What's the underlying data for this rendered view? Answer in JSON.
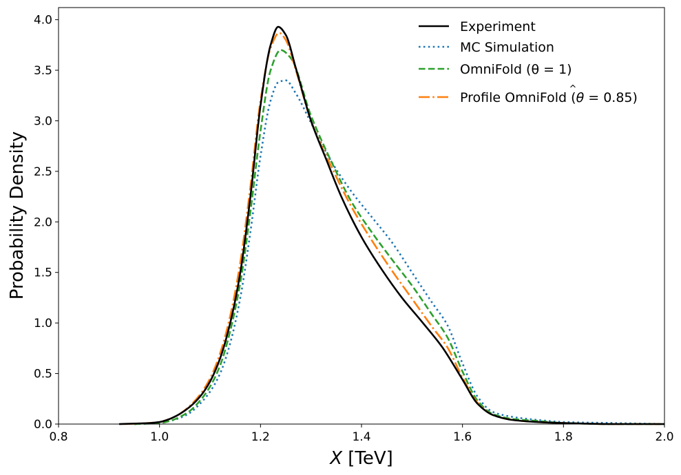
{
  "chart_data": {
    "type": "line",
    "title": "",
    "xlabel_var": "X",
    "xlabel_unit": "[TeV]",
    "ylabel": "Probability Density",
    "xlim": [
      0.8,
      2.0
    ],
    "ylim": [
      0.0,
      4.12
    ],
    "xticks": [
      0.8,
      1.0,
      1.2,
      1.4,
      1.6,
      1.8,
      2.0
    ],
    "xtick_labels": [
      "0.8",
      "1.0",
      "1.2",
      "1.4",
      "1.6",
      "1.8",
      "2.0"
    ],
    "yticks": [
      0.0,
      0.5,
      1.0,
      1.5,
      2.0,
      2.5,
      3.0,
      3.5,
      4.0
    ],
    "ytick_labels": [
      "0.0",
      "0.5",
      "1.0",
      "1.5",
      "2.0",
      "2.5",
      "3.0",
      "3.5",
      "4.0"
    ],
    "legend_position": "top-right",
    "grid": false,
    "series": [
      {
        "name": "Experiment",
        "legend_label": "Experiment",
        "color": "#000000",
        "style": "solid",
        "x": [
          0.92,
          0.98,
          1.0,
          1.02,
          1.04,
          1.06,
          1.08,
          1.1,
          1.12,
          1.14,
          1.16,
          1.18,
          1.2,
          1.22,
          1.235,
          1.25,
          1.27,
          1.3,
          1.33,
          1.36,
          1.4,
          1.44,
          1.48,
          1.52,
          1.56,
          1.6,
          1.63,
          1.66,
          1.7,
          1.75,
          1.8,
          1.9,
          2.0
        ],
        "values": [
          0.0,
          0.01,
          0.02,
          0.05,
          0.1,
          0.17,
          0.27,
          0.42,
          0.65,
          1.0,
          1.5,
          2.25,
          3.15,
          3.75,
          3.93,
          3.85,
          3.52,
          3.0,
          2.62,
          2.25,
          1.85,
          1.53,
          1.25,
          1.01,
          0.76,
          0.44,
          0.2,
          0.09,
          0.04,
          0.02,
          0.01,
          0.0,
          0.0
        ]
      },
      {
        "name": "MC Simulation",
        "legend_label": "MC Simulation",
        "color": "#1f77b4",
        "style": "dotted",
        "x": [
          0.95,
          1.0,
          1.02,
          1.04,
          1.06,
          1.08,
          1.1,
          1.12,
          1.14,
          1.16,
          1.18,
          1.2,
          1.22,
          1.235,
          1.25,
          1.27,
          1.3,
          1.34,
          1.38,
          1.42,
          1.46,
          1.5,
          1.54,
          1.57,
          1.6,
          1.63,
          1.66,
          1.7,
          1.75,
          1.8,
          1.9,
          2.0
        ],
        "values": [
          0.0,
          0.01,
          0.03,
          0.06,
          0.11,
          0.2,
          0.32,
          0.5,
          0.8,
          1.25,
          1.9,
          2.65,
          3.2,
          3.38,
          3.4,
          3.27,
          2.98,
          2.6,
          2.3,
          2.05,
          1.8,
          1.5,
          1.2,
          0.98,
          0.6,
          0.27,
          0.12,
          0.07,
          0.04,
          0.02,
          0.01,
          0.0
        ]
      },
      {
        "name": "OmniFold",
        "legend_label": "OmniFold (θ = 1)",
        "color": "#2ca02c",
        "style": "dashed",
        "x": [
          0.95,
          1.0,
          1.02,
          1.04,
          1.06,
          1.08,
          1.1,
          1.12,
          1.14,
          1.16,
          1.18,
          1.2,
          1.22,
          1.24,
          1.26,
          1.3,
          1.34,
          1.38,
          1.42,
          1.46,
          1.5,
          1.54,
          1.57,
          1.6,
          1.63,
          1.66,
          1.7,
          1.75,
          1.8,
          1.9,
          2.0
        ],
        "values": [
          0.0,
          0.01,
          0.03,
          0.07,
          0.13,
          0.23,
          0.37,
          0.58,
          0.92,
          1.4,
          2.1,
          2.9,
          3.5,
          3.7,
          3.62,
          3.05,
          2.6,
          2.2,
          1.9,
          1.63,
          1.37,
          1.08,
          0.86,
          0.52,
          0.23,
          0.1,
          0.05,
          0.03,
          0.01,
          0.0,
          0.0
        ]
      },
      {
        "name": "Profile OmniFold",
        "legend_label_prefix": "Profile OmniFold (",
        "legend_label_theta": "θ",
        "legend_label_suffix": " = 0.85)",
        "color": "#ff7f0e",
        "style": "dashdot",
        "x": [
          0.93,
          0.98,
          1.0,
          1.02,
          1.04,
          1.06,
          1.08,
          1.1,
          1.12,
          1.14,
          1.16,
          1.18,
          1.2,
          1.22,
          1.237,
          1.25,
          1.27,
          1.3,
          1.34,
          1.38,
          1.42,
          1.46,
          1.5,
          1.54,
          1.57,
          1.6,
          1.63,
          1.66,
          1.7,
          1.75,
          1.8,
          1.9,
          2.0
        ],
        "values": [
          0.0,
          0.01,
          0.02,
          0.05,
          0.1,
          0.18,
          0.29,
          0.45,
          0.7,
          1.07,
          1.6,
          2.35,
          3.2,
          3.72,
          3.87,
          3.8,
          3.5,
          3.0,
          2.55,
          2.15,
          1.82,
          1.52,
          1.24,
          0.96,
          0.76,
          0.46,
          0.21,
          0.09,
          0.04,
          0.02,
          0.01,
          0.0,
          0.0
        ]
      }
    ]
  }
}
